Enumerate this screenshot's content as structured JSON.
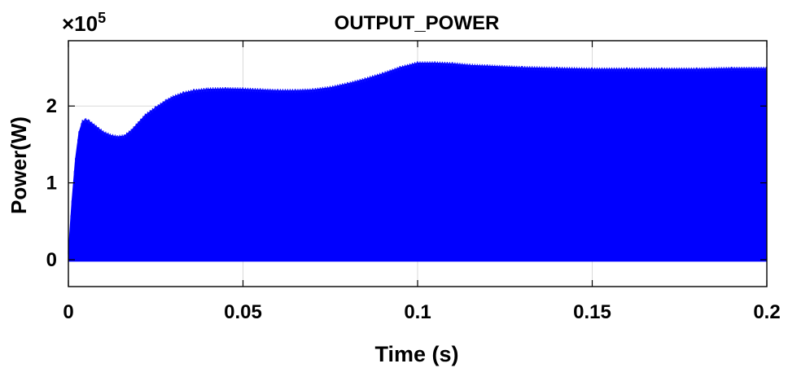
{
  "chart_data": {
    "type": "area",
    "title": "OUTPUT_POWER",
    "xlabel": "Time (s)",
    "ylabel": "Power(W)",
    "exponent_label": {
      "base": "×10",
      "power": "5"
    },
    "xlim": [
      0,
      0.2
    ],
    "ylim": [
      -0.35,
      2.85
    ],
    "xticks": [
      0,
      0.05,
      0.1,
      0.15,
      0.2
    ],
    "xtick_labels": [
      "0",
      "0.05",
      "0.1",
      "0.15",
      "0.2"
    ],
    "yticks": [
      0,
      1,
      2
    ],
    "ytick_labels": [
      "0",
      "1",
      "2"
    ],
    "grid": true,
    "color": "#0000FF",
    "series": [
      {
        "band": "lower envelope",
        "x": [
          0,
          0.2
        ],
        "y": [
          -0.02,
          -0.02
        ]
      },
      {
        "band": "upper envelope",
        "x": [
          0,
          0.001,
          0.002,
          0.003,
          0.004,
          0.005,
          0.006,
          0.008,
          0.01,
          0.012,
          0.014,
          0.016,
          0.018,
          0.02,
          0.022,
          0.025,
          0.028,
          0.03,
          0.033,
          0.036,
          0.04,
          0.045,
          0.05,
          0.055,
          0.06,
          0.065,
          0.07,
          0.075,
          0.08,
          0.085,
          0.09,
          0.095,
          0.1,
          0.105,
          0.11,
          0.115,
          0.12,
          0.13,
          0.14,
          0.15,
          0.16,
          0.17,
          0.18,
          0.19,
          0.2
        ],
        "y": [
          0.1,
          0.75,
          1.3,
          1.65,
          1.8,
          1.82,
          1.8,
          1.73,
          1.66,
          1.62,
          1.6,
          1.61,
          1.68,
          1.78,
          1.88,
          1.98,
          2.07,
          2.12,
          2.17,
          2.2,
          2.22,
          2.225,
          2.22,
          2.21,
          2.2,
          2.2,
          2.21,
          2.24,
          2.29,
          2.35,
          2.42,
          2.5,
          2.56,
          2.56,
          2.55,
          2.53,
          2.52,
          2.5,
          2.49,
          2.48,
          2.48,
          2.48,
          2.48,
          2.49,
          2.49
        ]
      }
    ]
  }
}
